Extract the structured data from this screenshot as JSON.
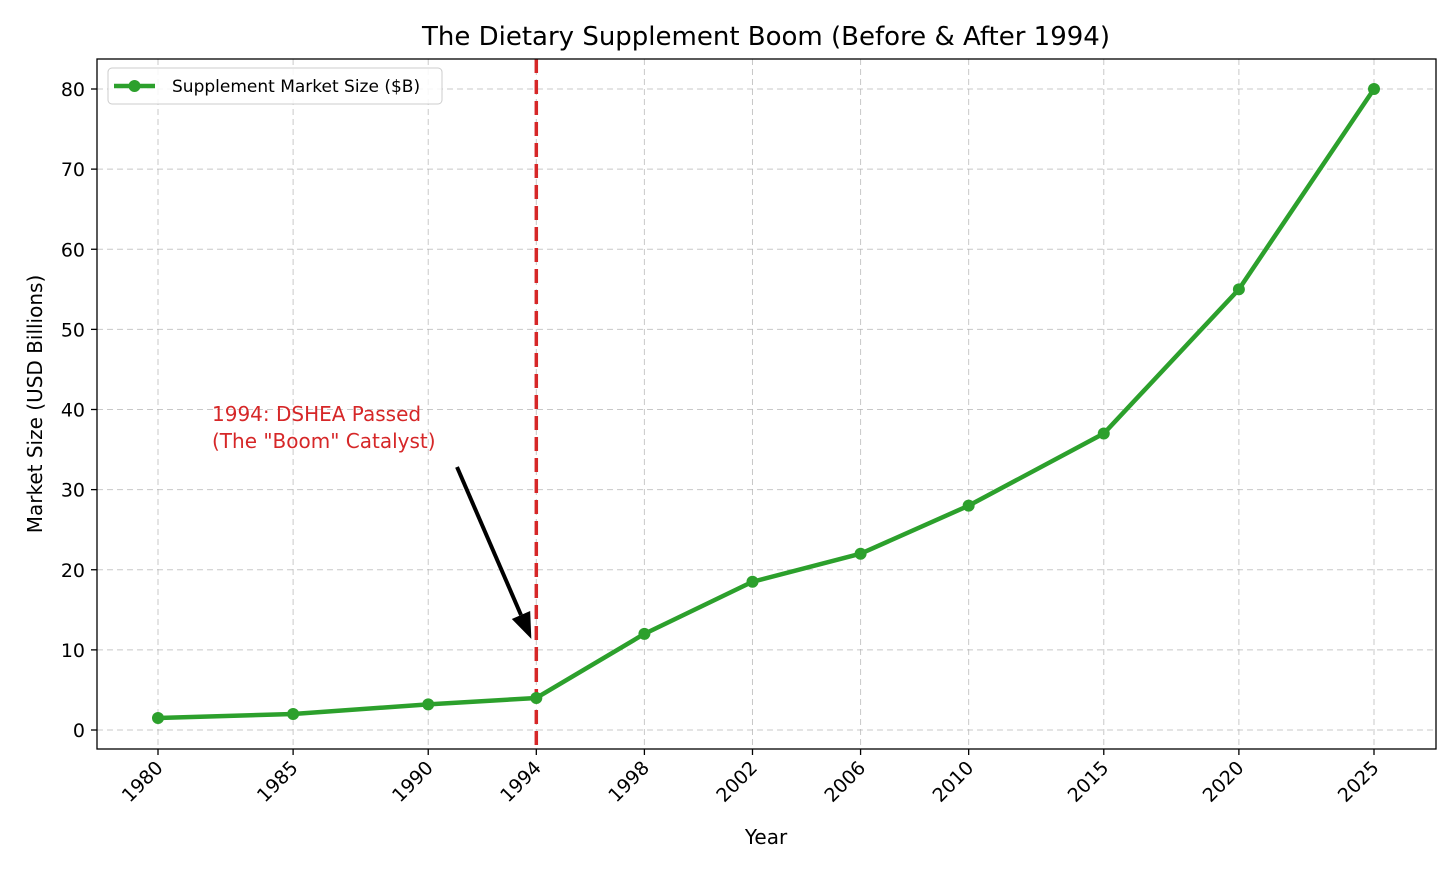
{
  "chart_data": {
    "type": "line",
    "title": "The Dietary Supplement Boom (Before & After 1994)",
    "xlabel": "Year",
    "ylabel": "Market Size (USD Billions)",
    "categories": [
      "1980",
      "1985",
      "1990",
      "1994",
      "1998",
      "2002",
      "2006",
      "2010",
      "2015",
      "2020",
      "2025"
    ],
    "x": [
      1980,
      1985,
      1990,
      1994,
      1998,
      2002,
      2006,
      2010,
      2015,
      2020,
      2025
    ],
    "series": [
      {
        "name": "Supplement Market Size ($B)",
        "values": [
          1.5,
          2.0,
          3.2,
          4.0,
          12.0,
          18.5,
          22.0,
          28.0,
          37.0,
          55.0,
          80.0
        ],
        "color": "#2ca02c",
        "marker": "circle"
      }
    ],
    "ylim": [
      -2.5,
      84
    ],
    "yticks": [
      0,
      10,
      20,
      30,
      40,
      50,
      60,
      70,
      80
    ],
    "xtick_rotation": 45,
    "grid": true,
    "legend": "upper left",
    "vline": {
      "x": 1994,
      "color": "#d62728",
      "style": "dashed"
    },
    "annotation": {
      "lines": [
        "1994: DSHEA Passed",
        "(The \"Boom\" Catalyst)"
      ],
      "color": "#d62728",
      "arrow_target": {
        "x": 1994,
        "y": 11
      }
    }
  }
}
